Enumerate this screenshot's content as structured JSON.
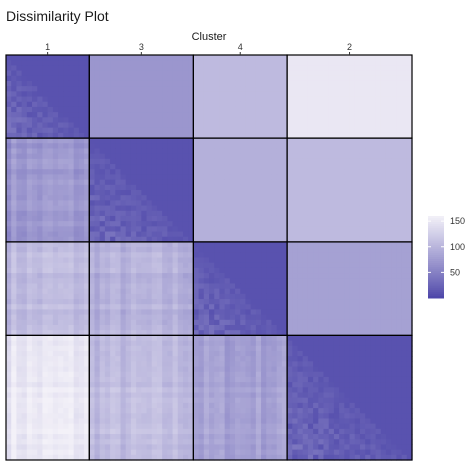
{
  "chart_data": {
    "type": "heatmap",
    "title": "Dissimilarity Plot",
    "xlabel": "Cluster",
    "ylabel": "",
    "cluster_order": [
      "1",
      "3",
      "4",
      "2"
    ],
    "cluster_sizes": [
      16,
      20,
      18,
      24
    ],
    "mean_dissimilarity": [
      [
        10,
        70,
        105,
        150
      ],
      [
        70,
        10,
        95,
        105
      ],
      [
        105,
        95,
        10,
        80
      ],
      [
        150,
        105,
        80,
        10
      ]
    ],
    "upper_triangle": "cluster-average dissimilarity",
    "lower_triangle": "individual pairwise dissimilarity",
    "zlim": [
      0,
      160
    ],
    "colorbar": {
      "ticks": [
        50,
        100,
        150
      ],
      "low_color": "#4b44a8",
      "high_color": "#f3f1f8"
    },
    "grid": false,
    "legend_position": "right"
  }
}
